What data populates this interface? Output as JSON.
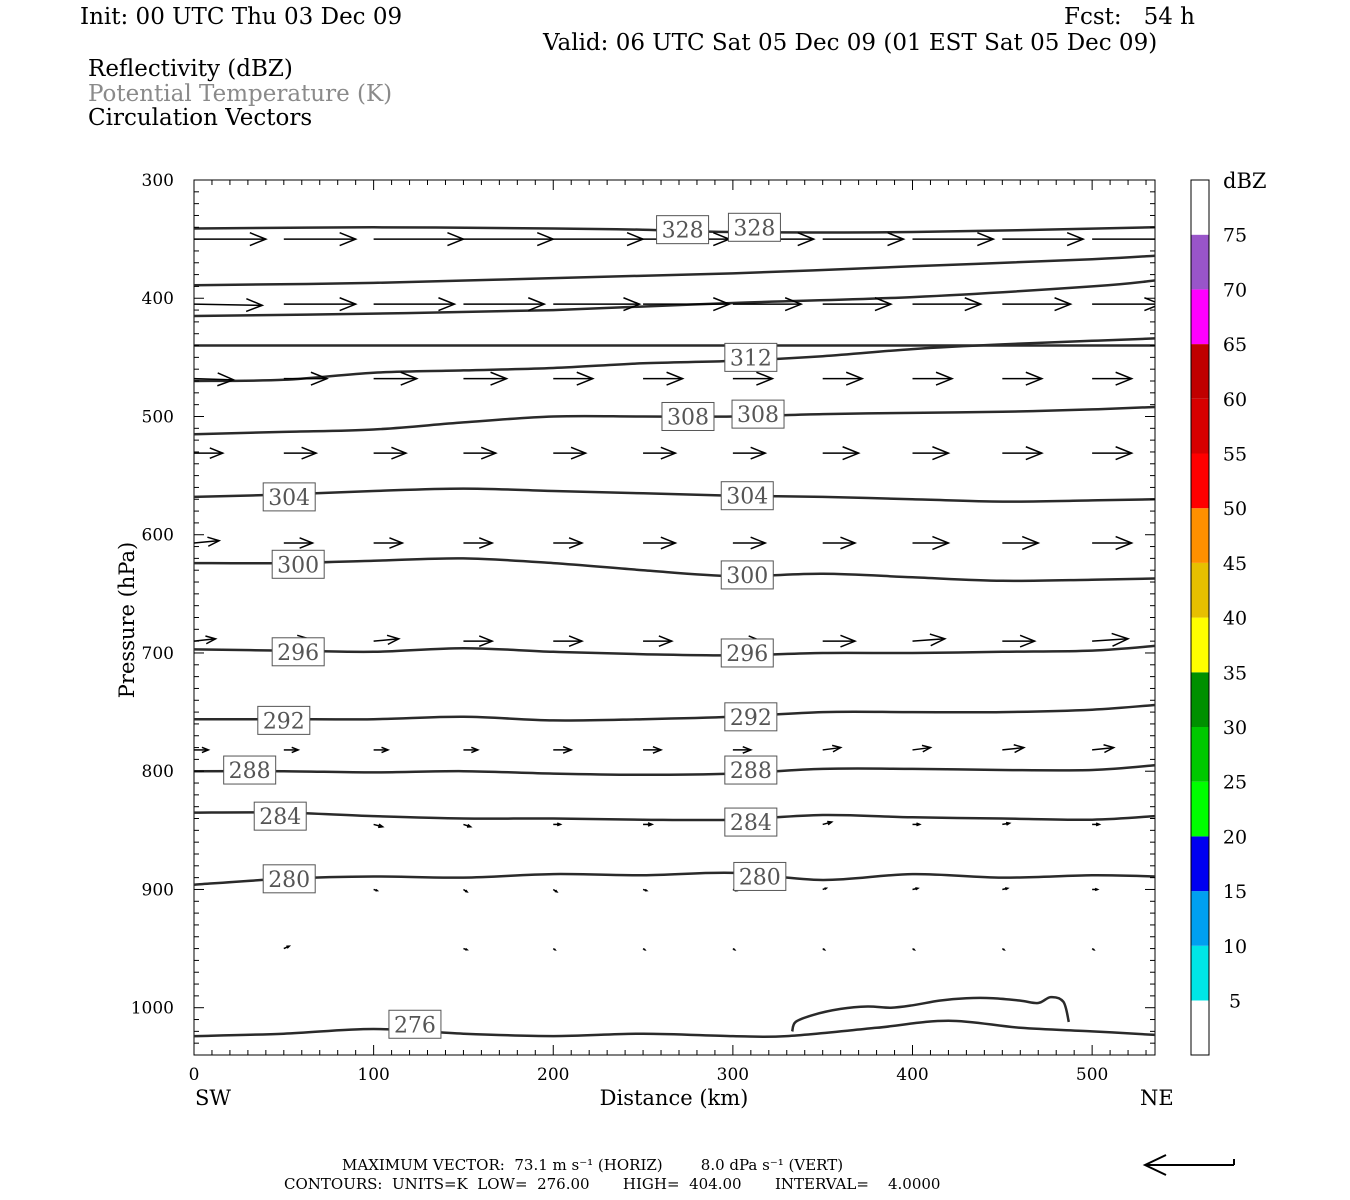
{
  "header": {
    "init": "Init: 00 UTC Thu 03 Dec 09",
    "fcst": "Fcst:   54 h",
    "valid": "Valid: 06 UTC Sat 05 Dec 09 (01 EST Sat 05 Dec 09)",
    "field1": "Reflectivity (dBZ)",
    "field2": "Potential Temperature (K)",
    "field3": "Circulation Vectors"
  },
  "footer": {
    "line1": "MAXIMUM VECTOR:  73.1 m s⁻¹ (HORIZ)        8.0 dPa s⁻¹ (VERT)",
    "line2": "CONTOURS:  UNITS=K  LOW=  276.00       HIGH=  404.00       INTERVAL=    4.0000"
  },
  "colors": {
    "contour": "#2a2a2a",
    "field2_text": "#8a8a8a"
  },
  "chart_data": {
    "type": "contour",
    "title": "",
    "xlabel": "Distance (km)",
    "ylabel": "Pressure (hPa)",
    "xlim": [
      0,
      535
    ],
    "ylim": [
      1040,
      300
    ],
    "y_scale": "linear-inverted",
    "x_ticks": [
      "0",
      "100",
      "200",
      "300",
      "400",
      "500"
    ],
    "y_ticks": [
      "300",
      "400",
      "500",
      "600",
      "700",
      "800",
      "900",
      "1000"
    ],
    "x_endpoints": {
      "left": "SW",
      "right": "NE"
    },
    "colorbar": {
      "label": "dBZ",
      "ticks": [
        "5",
        "10",
        "15",
        "20",
        "25",
        "30",
        "35",
        "40",
        "45",
        "50",
        "55",
        "60",
        "65",
        "70",
        "75"
      ],
      "colors": [
        "#00e6e6",
        "#00a0f0",
        "#0000f0",
        "#00ff00",
        "#00c800",
        "#009000",
        "#ffff00",
        "#e6c000",
        "#ff9000",
        "#ff0000",
        "#d60000",
        "#c00000",
        "#ff00ff",
        "#9955c9",
        "#ffffff"
      ]
    },
    "theta_contours": [
      {
        "label": "276",
        "label_pos": [
          [
            123,
            1014
          ]
        ],
        "points": [
          [
            0,
            1024
          ],
          [
            50,
            1022
          ],
          [
            100,
            1018
          ],
          [
            150,
            1022
          ],
          [
            200,
            1024
          ],
          [
            250,
            1022
          ],
          [
            300,
            1024
          ],
          [
            330,
            1024
          ],
          [
            380,
            1017
          ],
          [
            420,
            1011
          ],
          [
            460,
            1017
          ],
          [
            500,
            1020
          ],
          [
            535,
            1023
          ]
        ]
      },
      {
        "label": "280",
        "label_pos": [
          [
            53,
            891
          ],
          [
            315,
            889
          ]
        ],
        "points": [
          [
            0,
            896
          ],
          [
            50,
            891
          ],
          [
            100,
            889
          ],
          [
            150,
            890
          ],
          [
            200,
            887
          ],
          [
            250,
            888
          ],
          [
            300,
            886
          ],
          [
            350,
            892
          ],
          [
            400,
            887
          ],
          [
            450,
            890
          ],
          [
            500,
            888
          ],
          [
            535,
            889
          ]
        ]
      },
      {
        "label": "284",
        "label_pos": [
          [
            48,
            838
          ],
          [
            310,
            843
          ]
        ],
        "points": [
          [
            0,
            835
          ],
          [
            50,
            835
          ],
          [
            100,
            838
          ],
          [
            150,
            840
          ],
          [
            200,
            840
          ],
          [
            250,
            841
          ],
          [
            300,
            841
          ],
          [
            350,
            837
          ],
          [
            400,
            839
          ],
          [
            450,
            840
          ],
          [
            500,
            841
          ],
          [
            535,
            838
          ]
        ]
      },
      {
        "label": "288",
        "label_pos": [
          [
            31,
            799
          ],
          [
            310,
            799
          ]
        ],
        "points": [
          [
            0,
            800
          ],
          [
            50,
            800
          ],
          [
            100,
            801
          ],
          [
            150,
            800
          ],
          [
            200,
            802
          ],
          [
            250,
            803
          ],
          [
            300,
            802
          ],
          [
            350,
            798
          ],
          [
            400,
            798
          ],
          [
            450,
            799
          ],
          [
            500,
            799
          ],
          [
            535,
            795
          ]
        ]
      },
      {
        "label": "292",
        "label_pos": [
          [
            50,
            757
          ],
          [
            310,
            754
          ]
        ],
        "points": [
          [
            0,
            756
          ],
          [
            50,
            756
          ],
          [
            100,
            756
          ],
          [
            150,
            754
          ],
          [
            200,
            757
          ],
          [
            250,
            756
          ],
          [
            300,
            754
          ],
          [
            350,
            750
          ],
          [
            400,
            750
          ],
          [
            450,
            750
          ],
          [
            500,
            748
          ],
          [
            535,
            744
          ]
        ]
      },
      {
        "label": "296",
        "label_pos": [
          [
            58,
            699
          ],
          [
            308,
            700
          ]
        ],
        "points": [
          [
            0,
            697
          ],
          [
            50,
            698
          ],
          [
            100,
            699
          ],
          [
            150,
            696
          ],
          [
            200,
            699
          ],
          [
            250,
            701
          ],
          [
            300,
            702
          ],
          [
            350,
            700
          ],
          [
            400,
            700
          ],
          [
            450,
            699
          ],
          [
            500,
            698
          ],
          [
            535,
            694
          ]
        ]
      },
      {
        "label": "300",
        "label_pos": [
          [
            58,
            625
          ],
          [
            308,
            634
          ]
        ],
        "points": [
          [
            0,
            624
          ],
          [
            50,
            624
          ],
          [
            100,
            622
          ],
          [
            150,
            620
          ],
          [
            200,
            624
          ],
          [
            250,
            630
          ],
          [
            300,
            635
          ],
          [
            350,
            633
          ],
          [
            400,
            636
          ],
          [
            450,
            639
          ],
          [
            500,
            638
          ],
          [
            535,
            637
          ]
        ]
      },
      {
        "label": "304",
        "label_pos": [
          [
            53,
            568
          ],
          [
            308,
            567
          ]
        ],
        "points": [
          [
            0,
            568
          ],
          [
            50,
            566
          ],
          [
            100,
            563
          ],
          [
            150,
            561
          ],
          [
            200,
            563
          ],
          [
            250,
            565
          ],
          [
            300,
            567
          ],
          [
            350,
            568
          ],
          [
            400,
            570
          ],
          [
            450,
            572
          ],
          [
            500,
            571
          ],
          [
            535,
            570
          ]
        ]
      },
      {
        "label": "308",
        "label_pos": [
          [
            275,
            500
          ],
          [
            314,
            498
          ]
        ],
        "points": [
          [
            0,
            515
          ],
          [
            50,
            513
          ],
          [
            100,
            511
          ],
          [
            150,
            505
          ],
          [
            200,
            500
          ],
          [
            250,
            500
          ],
          [
            300,
            500
          ],
          [
            350,
            498
          ],
          [
            400,
            497
          ],
          [
            450,
            496
          ],
          [
            500,
            494
          ],
          [
            535,
            492
          ]
        ]
      },
      {
        "label": "312",
        "label_pos": [
          [
            310,
            450
          ]
        ],
        "points": [
          [
            0,
            470
          ],
          [
            50,
            469
          ],
          [
            100,
            463
          ],
          [
            150,
            461
          ],
          [
            200,
            459
          ],
          [
            250,
            455
          ],
          [
            300,
            453
          ],
          [
            350,
            449
          ],
          [
            400,
            443
          ],
          [
            450,
            439
          ],
          [
            500,
            436
          ],
          [
            535,
            434
          ]
        ]
      },
      {
        "label": "",
        "label_pos": [],
        "points": [
          [
            0,
            440
          ],
          [
            100,
            440
          ],
          [
            200,
            440
          ],
          [
            300,
            440
          ],
          [
            400,
            440
          ],
          [
            535,
            440
          ]
        ]
      },
      {
        "label": "",
        "label_pos": [],
        "points": [
          [
            0,
            415
          ],
          [
            100,
            413
          ],
          [
            200,
            410
          ],
          [
            300,
            404
          ],
          [
            400,
            399
          ],
          [
            500,
            390
          ],
          [
            535,
            385
          ]
        ]
      },
      {
        "label": "",
        "label_pos": [],
        "points": [
          [
            0,
            389
          ],
          [
            100,
            387
          ],
          [
            200,
            383
          ],
          [
            300,
            379
          ],
          [
            400,
            373
          ],
          [
            500,
            367
          ],
          [
            535,
            364
          ]
        ]
      },
      {
        "label": "328",
        "label_pos": [
          [
            272,
            342
          ],
          [
            312,
            340
          ]
        ],
        "points": [
          [
            0,
            341
          ],
          [
            100,
            340
          ],
          [
            200,
            341
          ],
          [
            250,
            342
          ],
          [
            300,
            344
          ],
          [
            400,
            344
          ],
          [
            535,
            340
          ]
        ]
      }
    ],
    "reflectivity_outline": [
      [
        333,
        1020
      ],
      [
        335,
        1012
      ],
      [
        345,
        1006
      ],
      [
        360,
        1001
      ],
      [
        375,
        999
      ],
      [
        388,
        1000
      ],
      [
        400,
        998
      ],
      [
        415,
        994
      ],
      [
        430,
        992
      ],
      [
        445,
        992
      ],
      [
        460,
        994
      ],
      [
        470,
        996
      ],
      [
        477,
        991
      ],
      [
        484,
        995
      ],
      [
        487,
        1012
      ]
    ],
    "vectors": [
      {
        "row": 350,
        "x": [
          0,
          50,
          100,
          150,
          200,
          250,
          300,
          350,
          400,
          450,
          500
        ],
        "dx": [
          40,
          40,
          50,
          50,
          50,
          48,
          45,
          45,
          45,
          45,
          48
        ],
        "dp": [
          0,
          0,
          0,
          0,
          0,
          0,
          0,
          0,
          0,
          0,
          0
        ]
      },
      {
        "row": 405,
        "x": [
          0,
          50,
          100,
          150,
          200,
          250,
          300,
          350,
          400,
          450,
          500,
          535
        ],
        "dx": [
          38,
          40,
          45,
          45,
          48,
          48,
          38,
          38,
          38,
          38,
          38,
          20
        ],
        "dp": [
          1,
          0,
          0,
          0,
          0,
          0,
          0,
          0,
          0,
          0,
          0,
          0
        ]
      },
      {
        "row": 468,
        "x": [
          0,
          50,
          100,
          150,
          200,
          250,
          300,
          350,
          400,
          450,
          500
        ],
        "dx": [
          22,
          24,
          24,
          24,
          22,
          22,
          22,
          22,
          22,
          22,
          22
        ],
        "dp": [
          1,
          0,
          0,
          0,
          0,
          0,
          0,
          0,
          0,
          0,
          0
        ]
      },
      {
        "row": 531,
        "x": [
          0,
          50,
          100,
          150,
          200,
          250,
          300,
          350,
          400,
          450,
          500
        ],
        "dx": [
          16,
          18,
          18,
          18,
          18,
          18,
          18,
          20,
          20,
          22,
          22
        ],
        "dp": [
          0,
          0,
          0,
          0,
          0,
          0,
          0,
          0,
          0,
          0,
          0
        ]
      },
      {
        "row": 607,
        "x": [
          0,
          50,
          100,
          150,
          200,
          250,
          300,
          350,
          400,
          450,
          500
        ],
        "dx": [
          14,
          16,
          16,
          16,
          16,
          18,
          18,
          18,
          20,
          20,
          22
        ],
        "dp": [
          -2,
          0,
          0,
          0,
          0,
          0,
          0,
          0,
          0,
          0,
          0
        ]
      },
      {
        "row": 690,
        "x": [
          0,
          50,
          100,
          150,
          200,
          250,
          300,
          350,
          400,
          450,
          500
        ],
        "dx": [
          12,
          14,
          14,
          16,
          16,
          16,
          16,
          18,
          18,
          18,
          20
        ],
        "dp": [
          -2,
          -2,
          -2,
          0,
          0,
          0,
          0,
          0,
          -2,
          0,
          -2
        ]
      },
      {
        "row": 782,
        "x": [
          0,
          50,
          100,
          150,
          200,
          250,
          300,
          350,
          400,
          450,
          500
        ],
        "dx": [
          8,
          8,
          8,
          8,
          10,
          10,
          10,
          10,
          10,
          12,
          12
        ],
        "dp": [
          0,
          0,
          0,
          0,
          0,
          0,
          0,
          -2,
          -2,
          -2,
          -2
        ]
      },
      {
        "row": 845,
        "x": [
          50,
          100,
          150,
          200,
          250,
          350,
          400,
          450,
          500
        ],
        "dx": [
          4,
          5,
          4,
          4,
          5,
          5,
          4,
          4,
          4
        ],
        "dp": [
          2,
          2,
          2,
          0,
          0,
          -2,
          0,
          -1,
          0
        ]
      },
      {
        "row": 900,
        "x": [
          100,
          150,
          200,
          250,
          300,
          350,
          400,
          450,
          500
        ],
        "dx": [
          2,
          2,
          2,
          2,
          2,
          2,
          3,
          3,
          3
        ],
        "dp": [
          1,
          2,
          2,
          1,
          1,
          -1,
          -1,
          -1,
          0
        ]
      },
      {
        "row": 950,
        "x": [
          50,
          150,
          200,
          250,
          300,
          350,
          400,
          450,
          500
        ],
        "dx": [
          3,
          2,
          1,
          1,
          1,
          1,
          1,
          1,
          1
        ],
        "dp": [
          -2,
          1,
          1,
          1,
          1,
          1,
          1,
          1,
          1
        ]
      }
    ]
  }
}
